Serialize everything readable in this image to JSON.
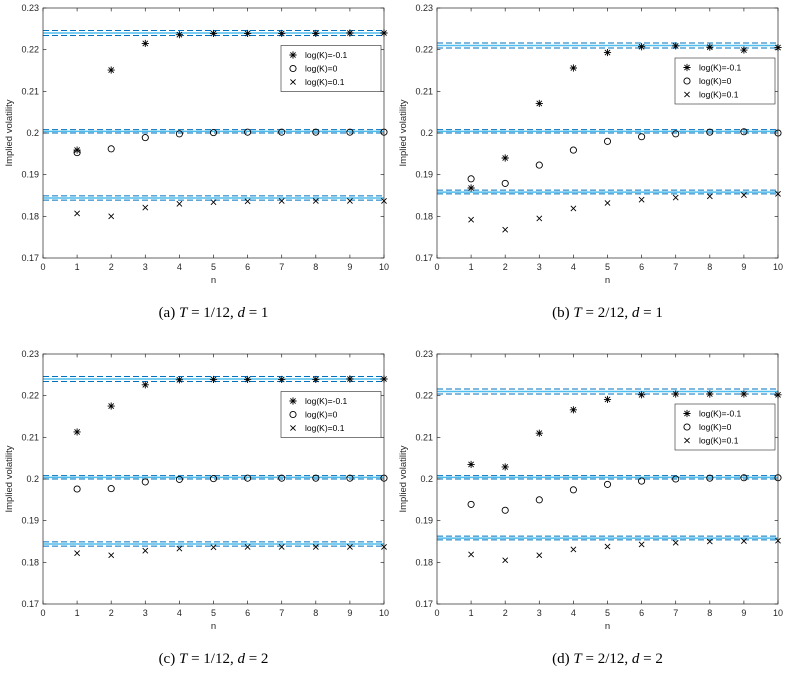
{
  "colors": {
    "solid_line": "#4DBEEE",
    "dashed_line": "#0072BD",
    "marker": "#000000",
    "axis": "#262626"
  },
  "chart_data": [
    {
      "type": "scatter",
      "caption": "(a) T = 1/12, d = 1",
      "xlabel": "n",
      "ylabel": "Implied volatility",
      "xlim": [
        0,
        10
      ],
      "ylim": [
        0.17,
        0.23
      ],
      "xticks": [
        "0",
        "1",
        "2",
        "3",
        "4",
        "5",
        "6",
        "7",
        "8",
        "9",
        "10"
      ],
      "yticks": [
        "0.17",
        "0.18",
        "0.19",
        "0.2",
        "0.21",
        "0.22",
        "0.23"
      ],
      "grid": false,
      "legend": "upper-right",
      "x": [
        1,
        2,
        3,
        4,
        5,
        6,
        7,
        8,
        9,
        10
      ],
      "series": [
        {
          "name": "log(K)=-0.1",
          "marker": "asterisk",
          "values": [
            0.1959,
            0.2151,
            0.2215,
            0.2236,
            0.2239,
            0.2239,
            0.2239,
            0.2239,
            0.224,
            0.224
          ]
        },
        {
          "name": "log(K)=0",
          "marker": "circle",
          "values": [
            0.1953,
            0.1962,
            0.1989,
            0.1998,
            0.2001,
            0.2002,
            0.2002,
            0.2002,
            0.2002,
            0.2002
          ]
        },
        {
          "name": "log(K)=0.1",
          "marker": "cross",
          "values": [
            0.1807,
            0.18,
            0.1821,
            0.183,
            0.1834,
            0.1836,
            0.1837,
            0.1837,
            0.1837,
            0.1837
          ]
        }
      ],
      "hlines": [
        {
          "y": 0.2246,
          "style": "dashed"
        },
        {
          "y": 0.224,
          "style": "solid"
        },
        {
          "y": 0.2234,
          "style": "dashed"
        },
        {
          "y": 0.2008,
          "style": "dashed"
        },
        {
          "y": 0.2004,
          "style": "solid"
        },
        {
          "y": 0.2,
          "style": "dashed"
        },
        {
          "y": 0.1849,
          "style": "dashed"
        },
        {
          "y": 0.1844,
          "style": "solid"
        },
        {
          "y": 0.1839,
          "style": "dashed"
        }
      ]
    },
    {
      "type": "scatter",
      "caption": "(b) T = 2/12, d = 1",
      "xlabel": "n",
      "ylabel": "Implied volatility",
      "xlim": [
        0,
        10
      ],
      "ylim": [
        0.17,
        0.23
      ],
      "xticks": [
        "0",
        "1",
        "2",
        "3",
        "4",
        "5",
        "6",
        "7",
        "8",
        "9",
        "10"
      ],
      "yticks": [
        "0.17",
        "0.18",
        "0.19",
        "0.2",
        "0.21",
        "0.22",
        "0.23"
      ],
      "grid": false,
      "legend": "upper-right",
      "x": [
        1,
        2,
        3,
        4,
        5,
        6,
        7,
        8,
        9,
        10
      ],
      "series": [
        {
          "name": "log(K)=-0.1",
          "marker": "asterisk",
          "values": [
            0.1868,
            0.194,
            0.2071,
            0.2156,
            0.2193,
            0.2207,
            0.2209,
            0.2206,
            0.2199,
            0.2205
          ]
        },
        {
          "name": "log(K)=0",
          "marker": "circle",
          "values": [
            0.189,
            0.1879,
            0.1923,
            0.1959,
            0.198,
            0.1991,
            0.1998,
            0.2002,
            0.2003,
            0.2
          ]
        },
        {
          "name": "log(K)=0.1",
          "marker": "cross",
          "values": [
            0.1792,
            0.1768,
            0.1795,
            0.1819,
            0.1832,
            0.184,
            0.1845,
            0.1848,
            0.1851,
            0.1854
          ]
        }
      ],
      "hlines": [
        {
          "y": 0.2216,
          "style": "dashed"
        },
        {
          "y": 0.221,
          "style": "solid"
        },
        {
          "y": 0.2204,
          "style": "dashed"
        },
        {
          "y": 0.2008,
          "style": "dashed"
        },
        {
          "y": 0.2004,
          "style": "solid"
        },
        {
          "y": 0.2,
          "style": "dashed"
        },
        {
          "y": 0.1863,
          "style": "dashed"
        },
        {
          "y": 0.1858,
          "style": "solid"
        },
        {
          "y": 0.1854,
          "style": "dashed"
        }
      ]
    },
    {
      "type": "scatter",
      "caption": "(c) T = 1/12, d = 2",
      "xlabel": "n",
      "ylabel": "Implied volatility",
      "xlim": [
        0,
        10
      ],
      "ylim": [
        0.17,
        0.23
      ],
      "xticks": [
        "0",
        "1",
        "2",
        "3",
        "4",
        "5",
        "6",
        "7",
        "8",
        "9",
        "10"
      ],
      "yticks": [
        "0.17",
        "0.18",
        "0.19",
        "0.2",
        "0.21",
        "0.22",
        "0.23"
      ],
      "grid": false,
      "legend": "upper-right",
      "x": [
        1,
        2,
        3,
        4,
        5,
        6,
        7,
        8,
        9,
        10
      ],
      "series": [
        {
          "name": "log(K)=-0.1",
          "marker": "asterisk",
          "values": [
            0.2113,
            0.2175,
            0.2226,
            0.2238,
            0.2239,
            0.2239,
            0.2239,
            0.2239,
            0.224,
            0.224
          ]
        },
        {
          "name": "log(K)=0",
          "marker": "circle",
          "values": [
            0.1976,
            0.1977,
            0.1993,
            0.1999,
            0.2001,
            0.2002,
            0.2002,
            0.2002,
            0.2002,
            0.2002
          ]
        },
        {
          "name": "log(K)=0.1",
          "marker": "cross",
          "values": [
            0.1822,
            0.1817,
            0.1828,
            0.1833,
            0.1836,
            0.1837,
            0.1837,
            0.1837,
            0.1837,
            0.1837
          ]
        }
      ],
      "hlines": [
        {
          "y": 0.2246,
          "style": "dashed"
        },
        {
          "y": 0.224,
          "style": "solid"
        },
        {
          "y": 0.2234,
          "style": "dashed"
        },
        {
          "y": 0.2008,
          "style": "dashed"
        },
        {
          "y": 0.2004,
          "style": "solid"
        },
        {
          "y": 0.2,
          "style": "dashed"
        },
        {
          "y": 0.1849,
          "style": "dashed"
        },
        {
          "y": 0.1844,
          "style": "solid"
        },
        {
          "y": 0.1839,
          "style": "dashed"
        }
      ]
    },
    {
      "type": "scatter",
      "caption": "(d) T = 2/12, d = 2",
      "xlabel": "n",
      "ylabel": "Implied volatility",
      "xlim": [
        0,
        10
      ],
      "ylim": [
        0.17,
        0.23
      ],
      "xticks": [
        "0",
        "1",
        "2",
        "3",
        "4",
        "5",
        "6",
        "7",
        "8",
        "9",
        "10"
      ],
      "yticks": [
        "0.17",
        "0.18",
        "0.19",
        "0.2",
        "0.21",
        "0.22",
        "0.23"
      ],
      "grid": false,
      "legend": "upper-right",
      "x": [
        1,
        2,
        3,
        4,
        5,
        6,
        7,
        8,
        9,
        10
      ],
      "series": [
        {
          "name": "log(K)=-0.1",
          "marker": "asterisk",
          "values": [
            0.2035,
            0.2029,
            0.211,
            0.2166,
            0.2191,
            0.2202,
            0.2204,
            0.2204,
            0.2204,
            0.2202
          ]
        },
        {
          "name": "log(K)=0",
          "marker": "circle",
          "values": [
            0.1939,
            0.1925,
            0.195,
            0.1974,
            0.1987,
            0.1995,
            0.2,
            0.2002,
            0.2003,
            0.2003
          ]
        },
        {
          "name": "log(K)=0.1",
          "marker": "cross",
          "values": [
            0.1819,
            0.1805,
            0.1817,
            0.1831,
            0.1838,
            0.1843,
            0.1847,
            0.185,
            0.1851,
            0.1852
          ]
        }
      ],
      "hlines": [
        {
          "y": 0.2216,
          "style": "dashed"
        },
        {
          "y": 0.221,
          "style": "solid"
        },
        {
          "y": 0.2204,
          "style": "dashed"
        },
        {
          "y": 0.2008,
          "style": "dashed"
        },
        {
          "y": 0.2004,
          "style": "solid"
        },
        {
          "y": 0.2,
          "style": "dashed"
        },
        {
          "y": 0.1863,
          "style": "dashed"
        },
        {
          "y": 0.1858,
          "style": "solid"
        },
        {
          "y": 0.1854,
          "style": "dashed"
        }
      ]
    }
  ]
}
